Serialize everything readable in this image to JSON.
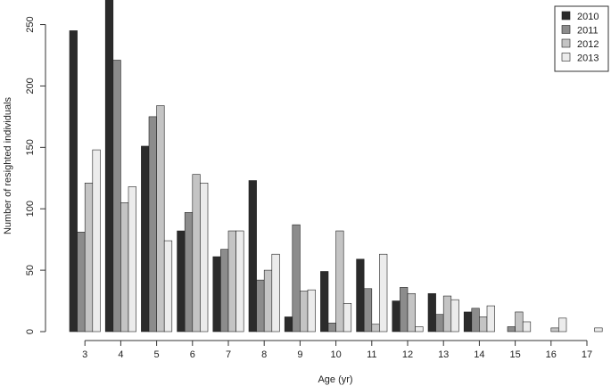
{
  "chart_data": {
    "type": "bar",
    "title": "",
    "xlabel": "Age (yr)",
    "ylabel": "Number of resighted individuals",
    "ylim": [
      0,
      270
    ],
    "yticks": [
      0,
      50,
      100,
      150,
      200,
      250
    ],
    "categories": [
      "3",
      "4",
      "5",
      "6",
      "7",
      "8",
      "9",
      "10",
      "11",
      "12",
      "13",
      "14",
      "15",
      "16",
      "17"
    ],
    "series": [
      {
        "name": "2010",
        "color": "#2b2b2b",
        "values": [
          245,
          272,
          151,
          82,
          61,
          123,
          12,
          49,
          59,
          25,
          31,
          16,
          0,
          0,
          0
        ]
      },
      {
        "name": "2011",
        "color": "#8c8c8c",
        "values": [
          81,
          221,
          175,
          97,
          67,
          42,
          87,
          7,
          35,
          36,
          14,
          19,
          4,
          0,
          0
        ]
      },
      {
        "name": "2012",
        "color": "#c4c4c4",
        "values": [
          121,
          105,
          184,
          128,
          82,
          50,
          33,
          82,
          6,
          31,
          29,
          12,
          16,
          3,
          0
        ]
      },
      {
        "name": "2013",
        "color": "#ececec",
        "values": [
          148,
          118,
          74,
          121,
          82,
          63,
          34,
          23,
          63,
          4,
          26,
          21,
          8,
          11,
          3
        ]
      }
    ],
    "legend_position": "top-right",
    "grid": false
  }
}
